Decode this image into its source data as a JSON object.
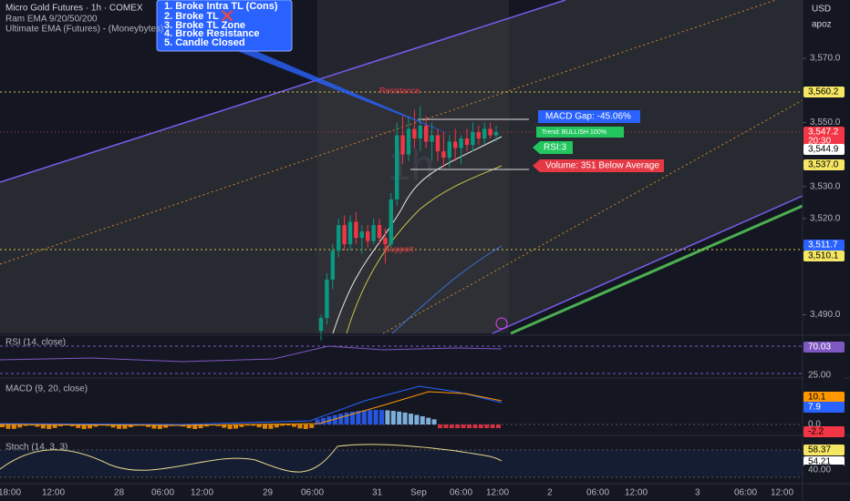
{
  "header": {
    "symbol": "Micro Gold Futures · 1h · COMEX",
    "indicator_1": "Ram EMA 9/20/50/200",
    "indicator_2": "Ultimate EMA (Futures) - (Moneybytes)"
  },
  "currency": {
    "code": "USD",
    "account": "apoz"
  },
  "callout": {
    "items": [
      "1. Broke Intra TL (Cons)",
      "2. Broke TL ❌",
      "3. Broke TL Zone",
      "4. Broke Resistance",
      "5. Candle Closed"
    ]
  },
  "annotations": {
    "resistance": "Resistance",
    "support": "Support",
    "macd_gap": "MACD Gap: -45.06%",
    "trend": "Trend: BULLISH 100%",
    "rsi": "RSI:3",
    "volume": "Volume: 351 Below Average"
  },
  "price_chart": {
    "ylim": [
      3484.2,
      3588.2
    ],
    "yticks": [
      {
        "value": 3570,
        "label": "3,570.0"
      },
      {
        "value": 3550,
        "label": "3,550.0"
      },
      {
        "value": 3530,
        "label": "3,530.0"
      },
      {
        "value": 3520,
        "label": "3,520.0"
      },
      {
        "value": 3490,
        "label": "3,490.0"
      }
    ],
    "price_labels": [
      "3,560.2",
      "3,547.2",
      "20:30",
      "3,544.9",
      "3,537.0",
      "3,511.7",
      "3,510.1"
    ],
    "candles": [
      [
        3485,
        3490,
        3482,
        3489
      ],
      [
        3489,
        3503,
        3487,
        3501
      ],
      [
        3501,
        3512,
        3498,
        3510
      ],
      [
        3510,
        3520,
        3508,
        3518
      ],
      [
        3518,
        3521,
        3510,
        3512
      ],
      [
        3512,
        3521,
        3510,
        3519
      ],
      [
        3519,
        3522,
        3512,
        3514
      ],
      [
        3514,
        3518,
        3509,
        3516
      ],
      [
        3516,
        3518,
        3511,
        3513
      ],
      [
        3513,
        3520,
        3512,
        3518
      ],
      [
        3518,
        3520,
        3512,
        3514
      ],
      [
        3514,
        3517,
        3506,
        3512
      ],
      [
        3512,
        3528,
        3510,
        3526
      ],
      [
        3526,
        3550,
        3524,
        3546
      ],
      [
        3546,
        3552,
        3537,
        3540
      ],
      [
        3540,
        3552,
        3538,
        3548
      ],
      [
        3548,
        3554,
        3542,
        3545
      ],
      [
        3545,
        3555,
        3541,
        3549
      ],
      [
        3549,
        3552,
        3542,
        3544
      ],
      [
        3544,
        3550,
        3538,
        3546
      ],
      [
        3546,
        3548,
        3538,
        3541
      ],
      [
        3541,
        3547,
        3536,
        3539
      ],
      [
        3539,
        3546,
        3536,
        3544
      ],
      [
        3544,
        3548,
        3538,
        3542
      ],
      [
        3542,
        3546,
        3537,
        3545
      ],
      [
        3545,
        3548,
        3541,
        3543
      ],
      [
        3543,
        3550,
        3541,
        3547
      ],
      [
        3547,
        3549,
        3543,
        3545
      ],
      [
        3545,
        3550,
        3543,
        3548
      ],
      [
        3548,
        3550,
        3545,
        3546
      ],
      [
        3546,
        3549,
        3544,
        3547
      ]
    ]
  },
  "panes": {
    "rsi": {
      "title": "RSI (14, close)",
      "labels": [
        "70.03",
        "25.00"
      ]
    },
    "macd": {
      "title": "MACD (9, 20, close)",
      "labels": [
        "10.1",
        "7.9",
        "0.0",
        "-2.2"
      ]
    },
    "stoch": {
      "title": "Stoch (14, 3, 3)",
      "labels": [
        "58.37",
        "54.21",
        "40.00"
      ]
    }
  },
  "time_axis": [
    "18:00",
    "12:00",
    "28",
    "06:00",
    "12:00",
    "29",
    "06:00",
    "31",
    "Sep",
    "06:00",
    "12:00",
    "2",
    "06:00",
    "12:00",
    "3",
    "06:00",
    "12:00"
  ]
}
